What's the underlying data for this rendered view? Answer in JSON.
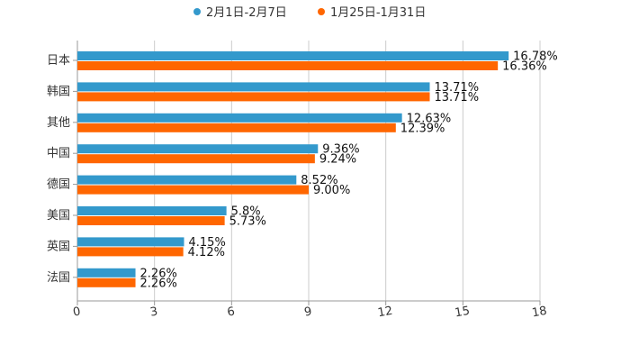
{
  "chart_data": {
    "type": "bar",
    "orientation": "horizontal",
    "categories": [
      "日本",
      "韩国",
      "其他",
      "中国",
      "德国",
      "美国",
      "英国",
      "法国"
    ],
    "series": [
      {
        "name": "2月1日-2月7日",
        "color": "#3399cc",
        "values": [
          16.78,
          13.71,
          12.63,
          9.36,
          8.52,
          5.8,
          4.15,
          2.26
        ],
        "labels": [
          "16.78%",
          "13.71%",
          "12.63%",
          "9.36%",
          "8.52%",
          "5.8%",
          "4.15%",
          "2.26%"
        ]
      },
      {
        "name": "1月25日-1月31日",
        "color": "#ff6600",
        "values": [
          16.36,
          13.71,
          12.39,
          9.24,
          9.0,
          5.73,
          4.12,
          2.26
        ],
        "labels": [
          "16.36%",
          "13.71%",
          "12.39%",
          "9.24%",
          "9.00%",
          "5.73%",
          "4.12%",
          "2.26%"
        ]
      }
    ],
    "xlim": [
      0,
      18
    ],
    "xticks": [
      0,
      3,
      6,
      9,
      12,
      15,
      18
    ],
    "xtick_labels": [
      "0",
      "3",
      "6",
      "9",
      "12",
      "15",
      "18"
    ],
    "grid": true,
    "legend_position": "top-center",
    "title": "",
    "xlabel": "",
    "ylabel": ""
  }
}
